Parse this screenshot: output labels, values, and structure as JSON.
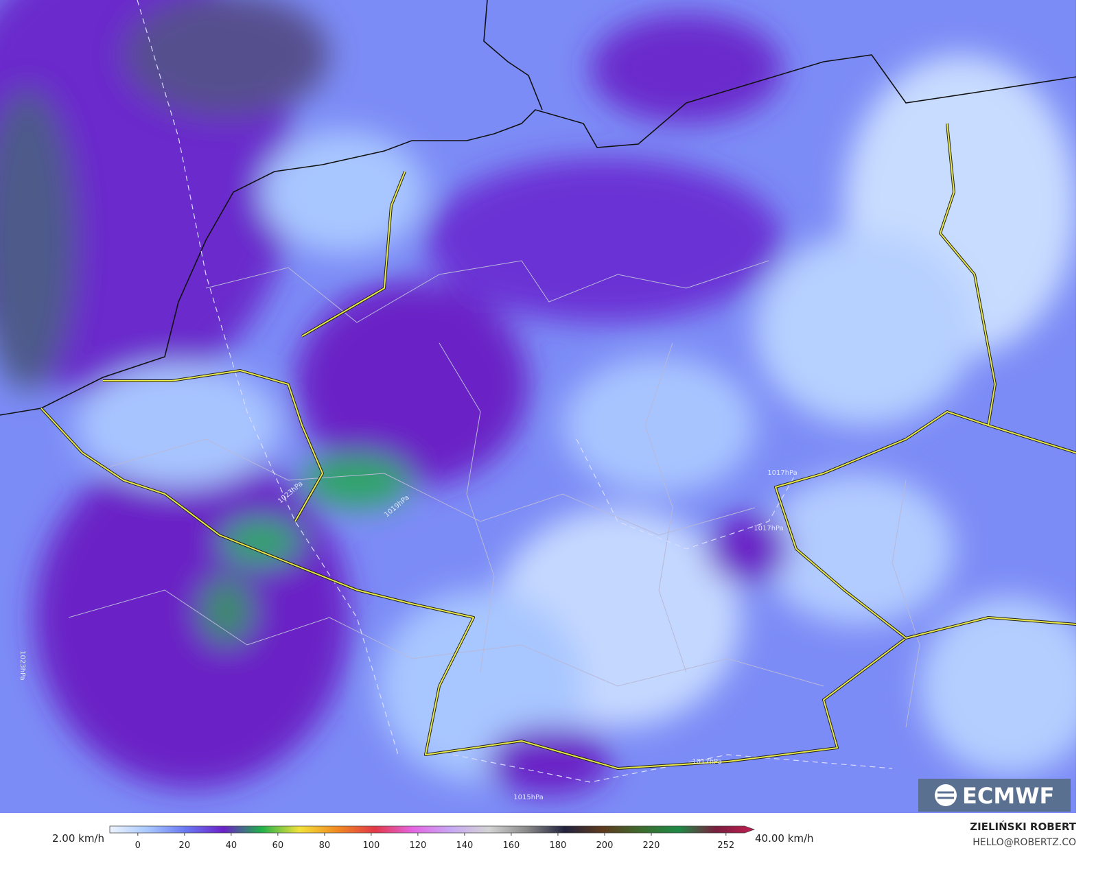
{
  "map": {
    "isobar_labels": [
      "1023hPa",
      "1019hPa",
      "1017hPa",
      "1017hPa",
      "1017hPa",
      "1023hPa",
      "1015hPa"
    ]
  },
  "logo": "ECMWF",
  "colorbar": {
    "min_label": "2.00 km/h",
    "max_label": "40.00 km/h",
    "range": [
      -12,
      260
    ],
    "ticks": [
      0,
      20,
      40,
      60,
      80,
      100,
      120,
      140,
      160,
      180,
      200,
      220,
      252
    ],
    "colors": [
      "#eef4ff",
      "#a8c8ff",
      "#6a78f2",
      "#6a22c8",
      "#1fb04a",
      "#f2e23a",
      "#f28a22",
      "#e23848",
      "#e466e4",
      "#c8a8f4",
      "#d4d4d4",
      "#8a8a8a",
      "#22223e",
      "#5e3a1e",
      "#3e6a2e",
      "#1e8a46",
      "#7a1e3e",
      "#c21e52"
    ]
  },
  "credit": {
    "author": "ZIELIŃSKI ROBERT",
    "email": "HELLO@ROBERTZ.CO"
  }
}
